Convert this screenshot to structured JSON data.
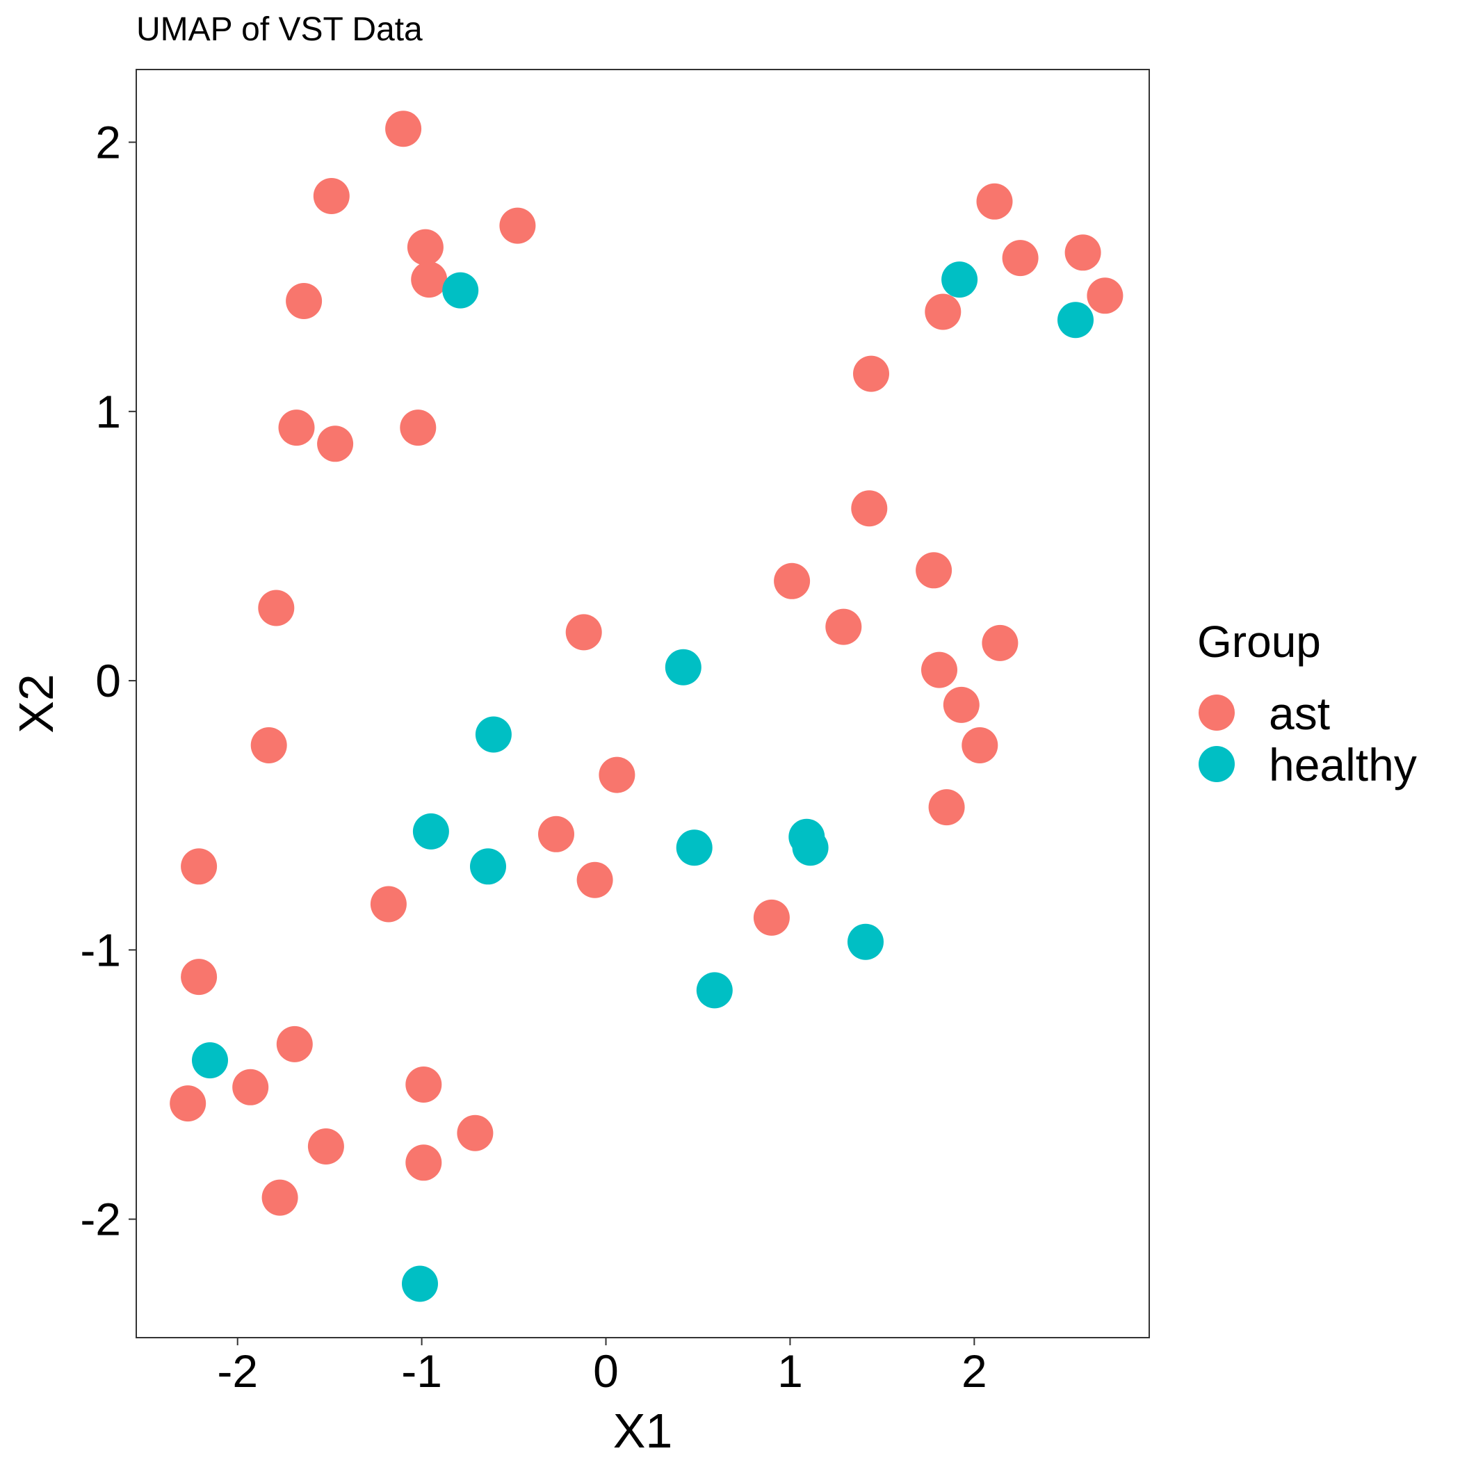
{
  "chart_data": {
    "type": "scatter",
    "title": "UMAP of VST Data",
    "xlabel": "X1",
    "ylabel": "X2",
    "xlim": [
      -2.55,
      2.95
    ],
    "ylim": [
      -2.44,
      2.27
    ],
    "xticks": [
      -2,
      -1,
      0,
      1,
      2
    ],
    "yticks": [
      -2,
      -1,
      0,
      1,
      2
    ],
    "x_tick_labels": [
      "-2",
      "-1",
      "0",
      "1",
      "2"
    ],
    "y_tick_labels": [
      "-2",
      "-1",
      "0",
      "1",
      "2"
    ],
    "grid": false,
    "legend_position": "right",
    "legend_title": "Group",
    "series": [
      {
        "name": "ast",
        "color": "#F8766D",
        "points": [
          [
            -1.1,
            2.05
          ],
          [
            -1.49,
            1.8
          ],
          [
            -0.48,
            1.69
          ],
          [
            -0.98,
            1.61
          ],
          [
            -0.96,
            1.49
          ],
          [
            -1.64,
            1.41
          ],
          [
            -1.68,
            0.94
          ],
          [
            -1.47,
            0.88
          ],
          [
            -1.02,
            0.94
          ],
          [
            -1.79,
            0.27
          ],
          [
            -1.83,
            -0.24
          ],
          [
            -2.21,
            -0.69
          ],
          [
            -2.21,
            -1.1
          ],
          [
            -1.69,
            -1.35
          ],
          [
            -1.93,
            -1.51
          ],
          [
            -2.27,
            -1.57
          ],
          [
            -1.52,
            -1.73
          ],
          [
            -1.77,
            -1.92
          ],
          [
            -0.99,
            -1.5
          ],
          [
            -0.99,
            -1.79
          ],
          [
            -0.71,
            -1.68
          ],
          [
            -1.18,
            -0.83
          ],
          [
            -0.27,
            -0.57
          ],
          [
            -0.12,
            0.18
          ],
          [
            0.06,
            -0.35
          ],
          [
            -0.06,
            -0.74
          ],
          [
            0.9,
            -0.88
          ],
          [
            1.01,
            0.37
          ],
          [
            1.29,
            0.2
          ],
          [
            1.44,
            1.14
          ],
          [
            1.43,
            0.64
          ],
          [
            1.78,
            0.41
          ],
          [
            1.81,
            0.04
          ],
          [
            1.93,
            -0.09
          ],
          [
            2.03,
            -0.24
          ],
          [
            1.85,
            -0.47
          ],
          [
            2.14,
            0.14
          ],
          [
            1.83,
            1.37
          ],
          [
            2.11,
            1.78
          ],
          [
            2.25,
            1.57
          ],
          [
            2.59,
            1.59
          ],
          [
            2.71,
            1.43
          ]
        ]
      },
      {
        "name": "healthy",
        "color": "#00BFC4",
        "points": [
          [
            -0.79,
            1.45
          ],
          [
            -0.61,
            -0.2
          ],
          [
            -0.95,
            -0.56
          ],
          [
            -0.64,
            -0.69
          ],
          [
            0.42,
            0.05
          ],
          [
            0.48,
            -0.62
          ],
          [
            0.59,
            -1.15
          ],
          [
            1.09,
            -0.58
          ],
          [
            1.11,
            -0.62
          ],
          [
            1.41,
            -0.97
          ],
          [
            1.92,
            1.49
          ],
          [
            2.55,
            1.34
          ],
          [
            -2.15,
            -1.41
          ],
          [
            -1.01,
            -2.24
          ]
        ]
      }
    ]
  }
}
